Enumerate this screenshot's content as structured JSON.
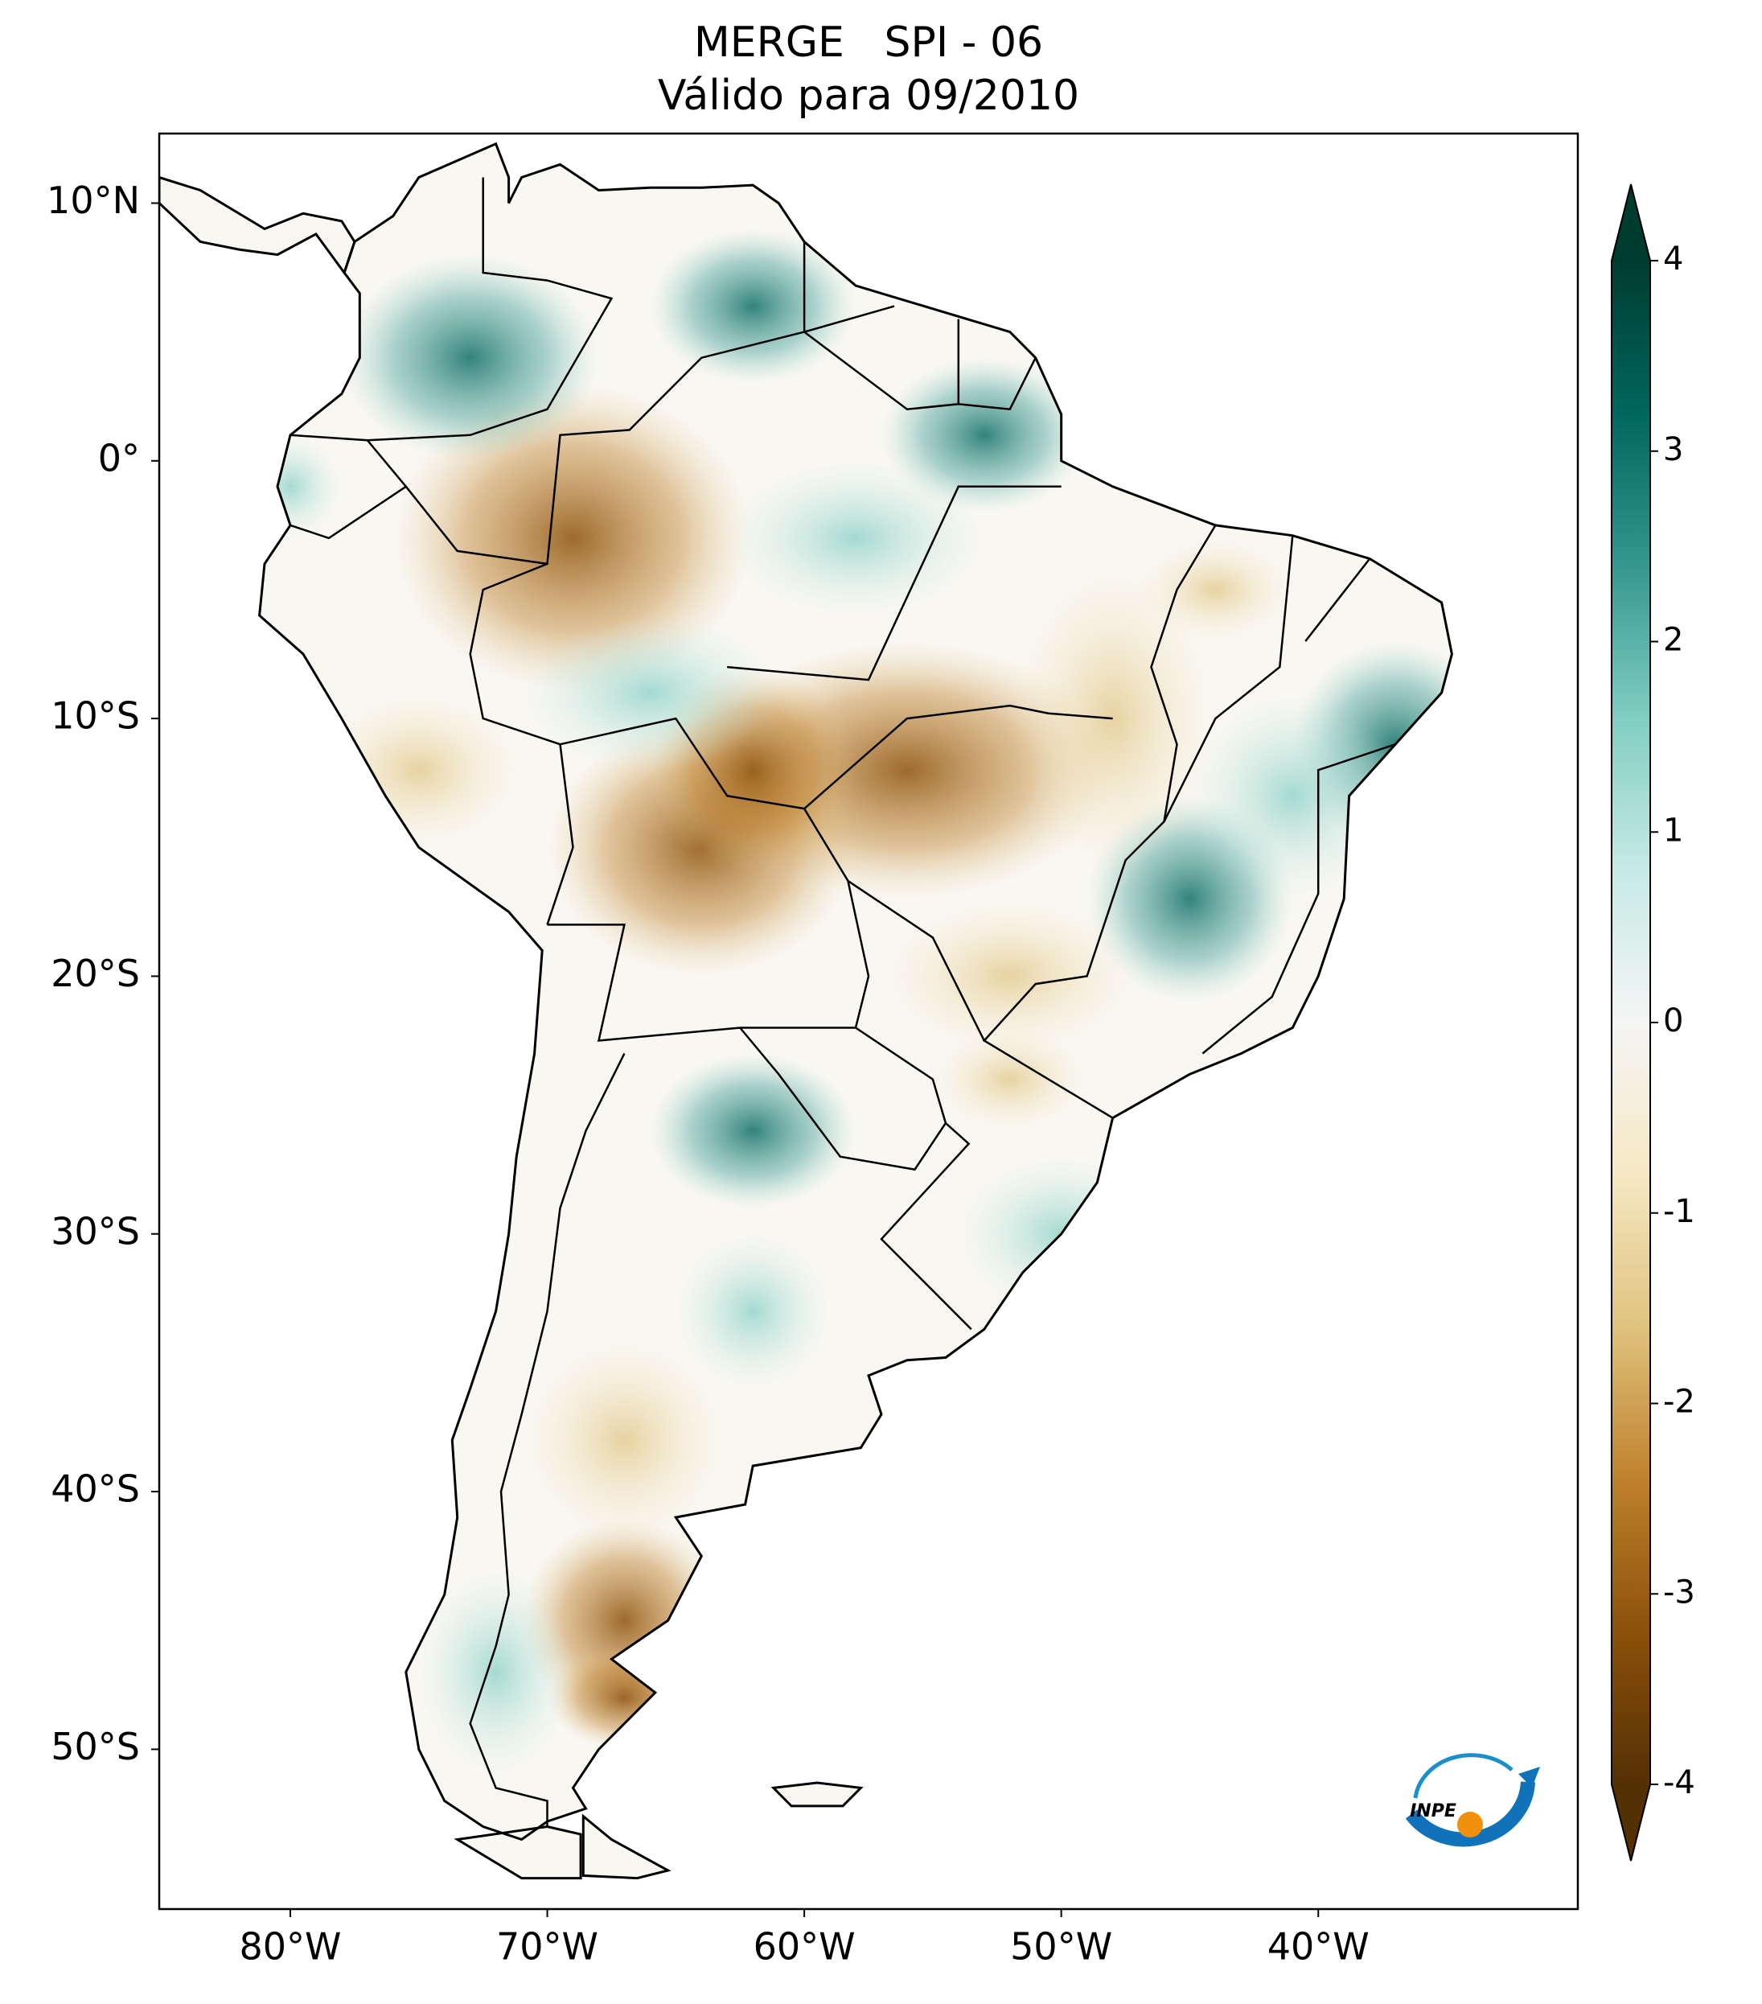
{
  "title": "MERGE   SPI - 06",
  "subtitle": "Válido para 09/2010",
  "map": {
    "xlim": [
      -85.1,
      -29.9
    ],
    "ylim": [
      -56.2,
      12.7
    ],
    "xticks": [
      {
        "value": -80,
        "label": "80°W"
      },
      {
        "value": -70,
        "label": "70°W"
      },
      {
        "value": -60,
        "label": "60°W"
      },
      {
        "value": -50,
        "label": "50°W"
      },
      {
        "value": -40,
        "label": "40°W"
      }
    ],
    "yticks": [
      {
        "value": 10,
        "label": "10°N"
      },
      {
        "value": 0,
        "label": "0°"
      },
      {
        "value": -10,
        "label": "10°S"
      },
      {
        "value": -20,
        "label": "20°S"
      },
      {
        "value": -30,
        "label": "30°S"
      },
      {
        "value": -40,
        "label": "40°S"
      },
      {
        "value": -50,
        "label": "50°S"
      }
    ]
  },
  "colorbar": {
    "clim": [
      -4,
      4
    ],
    "ticks": [
      -4,
      -3,
      -2,
      -1,
      0,
      1,
      2,
      3,
      4
    ],
    "colors": [
      "#543005",
      "#8c510a",
      "#bf812d",
      "#dfc27d",
      "#f6e8c3",
      "#f5f5f5",
      "#c7eae5",
      "#80cdc1",
      "#35978f",
      "#01665e",
      "#003c30"
    ]
  },
  "logo": "INPE"
}
